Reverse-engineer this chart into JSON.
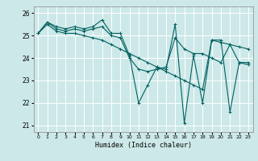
{
  "xlabel": "Humidex (Indice chaleur)",
  "ylabel": "",
  "xlim": [
    -0.5,
    23.5
  ],
  "ylim": [
    20.7,
    26.3
  ],
  "yticks": [
    21,
    22,
    23,
    24,
    25,
    26
  ],
  "xticks": [
    0,
    1,
    2,
    3,
    4,
    5,
    6,
    7,
    8,
    9,
    10,
    11,
    12,
    13,
    14,
    15,
    16,
    17,
    18,
    19,
    20,
    21,
    22,
    23
  ],
  "bg_color": "#cde8e8",
  "grid_color": "#ffffff",
  "line_color": "#006060",
  "series": [
    [
      25.1,
      25.6,
      25.4,
      25.3,
      25.4,
      25.3,
      25.4,
      25.7,
      25.1,
      25.1,
      24.1,
      22.0,
      22.8,
      23.6,
      23.5,
      25.5,
      21.1,
      24.1,
      22.0,
      24.8,
      24.8,
      21.6,
      23.8,
      23.8
    ],
    [
      25.1,
      25.6,
      25.3,
      25.2,
      25.3,
      25.2,
      25.3,
      25.4,
      25.0,
      24.9,
      24.0,
      23.5,
      23.4,
      23.5,
      23.6,
      24.9,
      24.4,
      24.2,
      24.2,
      24.0,
      23.8,
      24.6,
      23.8,
      23.7
    ],
    [
      25.1,
      25.5,
      25.2,
      25.1,
      25.1,
      25.0,
      24.9,
      24.8,
      24.6,
      24.4,
      24.2,
      24.0,
      23.8,
      23.6,
      23.4,
      23.2,
      23.0,
      22.8,
      22.6,
      24.8,
      24.7,
      24.6,
      24.5,
      24.4
    ]
  ],
  "figsize": [
    3.2,
    2.0
  ],
  "dpi": 100
}
